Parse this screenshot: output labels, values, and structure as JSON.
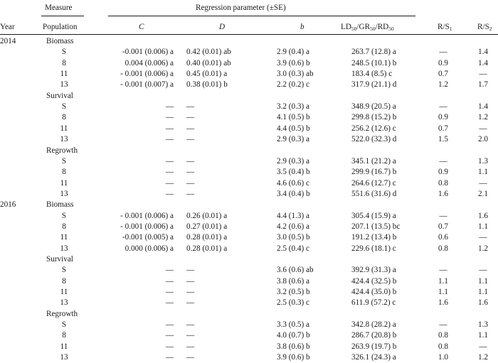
{
  "headers": {
    "measure": "Measure",
    "regression_group": "Regression parameter (±SE)",
    "year": "Year",
    "population": "Population",
    "c": "C",
    "d": "D",
    "b": "b",
    "ld_prefix": "LD",
    "gr_prefix": "GR",
    "rd_prefix": "RD",
    "fifty": "50",
    "rs_prefix": "R/S",
    "rs1_sub": "1",
    "rs2_sub": "2"
  },
  "rows": [
    {
      "kind": "group",
      "year": "2014",
      "label": "Biomass"
    },
    {
      "kind": "data",
      "pop": "S",
      "c": "-0.001 (0.006) a",
      "d": "0.42 (0.01) ab",
      "b": "2.9 (0.4) a",
      "ld": "263.7 (12.8) a",
      "rs1": "—",
      "rs2": "1.4"
    },
    {
      "kind": "data",
      "pop": "8",
      "c": "0.004 (0.006) a",
      "d": "0.40 (0.01) ab",
      "b": "3.9 (0.6) b",
      "ld": "248.5 (10.1) b",
      "rs1": "0.9",
      "rs2": "1.4"
    },
    {
      "kind": "data",
      "pop": "11",
      "c": "- 0.001 (0.006) a",
      "d": "0.45 (0.01) a",
      "b": "3.0 (0.3) ab",
      "ld": "183.4 (8.5) c",
      "rs1": "0.7",
      "rs2": "—"
    },
    {
      "kind": "data",
      "pop": "13",
      "c": "- 0.001 (0.007) a",
      "d": "0.38 (0.01) b",
      "b": "2.2 (0.2) c",
      "ld": "317.9 (21.1) d",
      "rs1": "1.2",
      "rs2": "1.7"
    },
    {
      "kind": "group",
      "year": "",
      "label": "Survival"
    },
    {
      "kind": "data",
      "pop": "S",
      "c": "—",
      "d": "—",
      "b": "3.2 (0.3) a",
      "ld": "348.9 (20.5) a",
      "rs1": "—",
      "rs2": "1.4"
    },
    {
      "kind": "data",
      "pop": "8",
      "c": "—",
      "d": "—",
      "b": "4.1 (0.5) b",
      "ld": "299.8 (15.2) b",
      "rs1": "0.9",
      "rs2": "1.2"
    },
    {
      "kind": "data",
      "pop": "11",
      "c": "—",
      "d": "—",
      "b": "4.4 (0.5) b",
      "ld": "256.2 (12.6) c",
      "rs1": "0.7",
      "rs2": "—"
    },
    {
      "kind": "data",
      "pop": "13",
      "c": "—",
      "d": "—",
      "b": "2.9 (0.3) a",
      "ld": "522.0 (32.3) d",
      "rs1": "1.5",
      "rs2": "2.0"
    },
    {
      "kind": "group",
      "year": "",
      "label": "Regrowth"
    },
    {
      "kind": "data",
      "pop": "S",
      "c": "—",
      "d": "—",
      "b": "2.9 (0.3) a",
      "ld": "345.1 (21.2) a",
      "rs1": "—",
      "rs2": "1.3"
    },
    {
      "kind": "data",
      "pop": "8",
      "c": "—",
      "d": "—",
      "b": "3.5 (0.4) b",
      "ld": "299.9 (16.7) b",
      "rs1": "0.9",
      "rs2": "1.1"
    },
    {
      "kind": "data",
      "pop": "11",
      "c": "—",
      "d": "—",
      "b": "4.6 (0.6) c",
      "ld": "264.6 (12.7) c",
      "rs1": "0.8",
      "rs2": "—"
    },
    {
      "kind": "data",
      "pop": "13",
      "c": "—",
      "d": "—",
      "b": "3.4 (0.4) b",
      "ld": "551.6 (31.6) d",
      "rs1": "1.6",
      "rs2": "2.1"
    },
    {
      "kind": "group",
      "year": "2016",
      "label": "Biomass"
    },
    {
      "kind": "data",
      "pop": "S",
      "c": "- 0.001 (0.006) a",
      "d": "0.26 (0.01) a",
      "b": "4.4 (1.3) a",
      "ld": "305.4 (15.9) a",
      "rs1": "—",
      "rs2": "1.6"
    },
    {
      "kind": "data",
      "pop": "8",
      "c": "- 0.001 (0.006) a",
      "d": "0.27 (0.01) a",
      "b": "4.2 (0.6) a",
      "ld": "207.1 (13.5) bc",
      "rs1": "0.7",
      "rs2": "1.1"
    },
    {
      "kind": "data",
      "pop": "11",
      "c": "-0.001 (0.005) a",
      "d": "0.28 (0.01) a",
      "b": "3.0 (0.5) b",
      "ld": "191.2 (13.4) b",
      "rs1": "0.6",
      "rs2": "—"
    },
    {
      "kind": "data",
      "pop": "13",
      "c": "0.000 (0.006) a",
      "d": "0.28 (0.01) a",
      "b": "2.5 (0.4) c",
      "ld": "229.6 (18.1) c",
      "rs1": "0.8",
      "rs2": "1.2"
    },
    {
      "kind": "group",
      "year": "",
      "label": "Survival"
    },
    {
      "kind": "data",
      "pop": "S",
      "c": "—",
      "d": "—",
      "b": "3.6 (0.6) ab",
      "ld": "392.9 (31.3) a",
      "rs1": "—",
      "rs2": "—"
    },
    {
      "kind": "data",
      "pop": "8",
      "c": "—",
      "d": "—",
      "b": "3.8 (0.6) a",
      "ld": "424.4 (32.5) b",
      "rs1": "1.1",
      "rs2": "1.1"
    },
    {
      "kind": "data",
      "pop": "11",
      "c": "—",
      "d": "—",
      "b": "3.2 (0.5) b",
      "ld": "424.4 (35.0) b",
      "rs1": "1.1",
      "rs2": "1.1"
    },
    {
      "kind": "data",
      "pop": "13",
      "c": "—",
      "d": "—",
      "b": "2.5 (0.3) c",
      "ld": "611.9 (57.2) c",
      "rs1": "1.6",
      "rs2": "1.6"
    },
    {
      "kind": "group",
      "year": "",
      "label": "Regrowth"
    },
    {
      "kind": "data",
      "pop": "S",
      "c": "—",
      "d": "—",
      "b": "3.3 (0.5) a",
      "ld": "342.8 (28.2) a",
      "rs1": "—",
      "rs2": "1.3"
    },
    {
      "kind": "data",
      "pop": "8",
      "c": "—",
      "d": "—",
      "b": "4.0 (0.7) b",
      "ld": "286.7 (20.8) b",
      "rs1": "0.8",
      "rs2": "1.1"
    },
    {
      "kind": "data",
      "pop": "11",
      "c": "—",
      "d": "—",
      "b": "3.8 (0.6) b",
      "ld": "263.9 (19.7) b",
      "rs1": "0.8",
      "rs2": "—"
    },
    {
      "kind": "data",
      "pop": "13",
      "c": "—",
      "d": "—",
      "b": "3.9 (0.6) b",
      "ld": "326.1 (24.3) a",
      "rs1": "1.0",
      "rs2": "1.2"
    }
  ]
}
